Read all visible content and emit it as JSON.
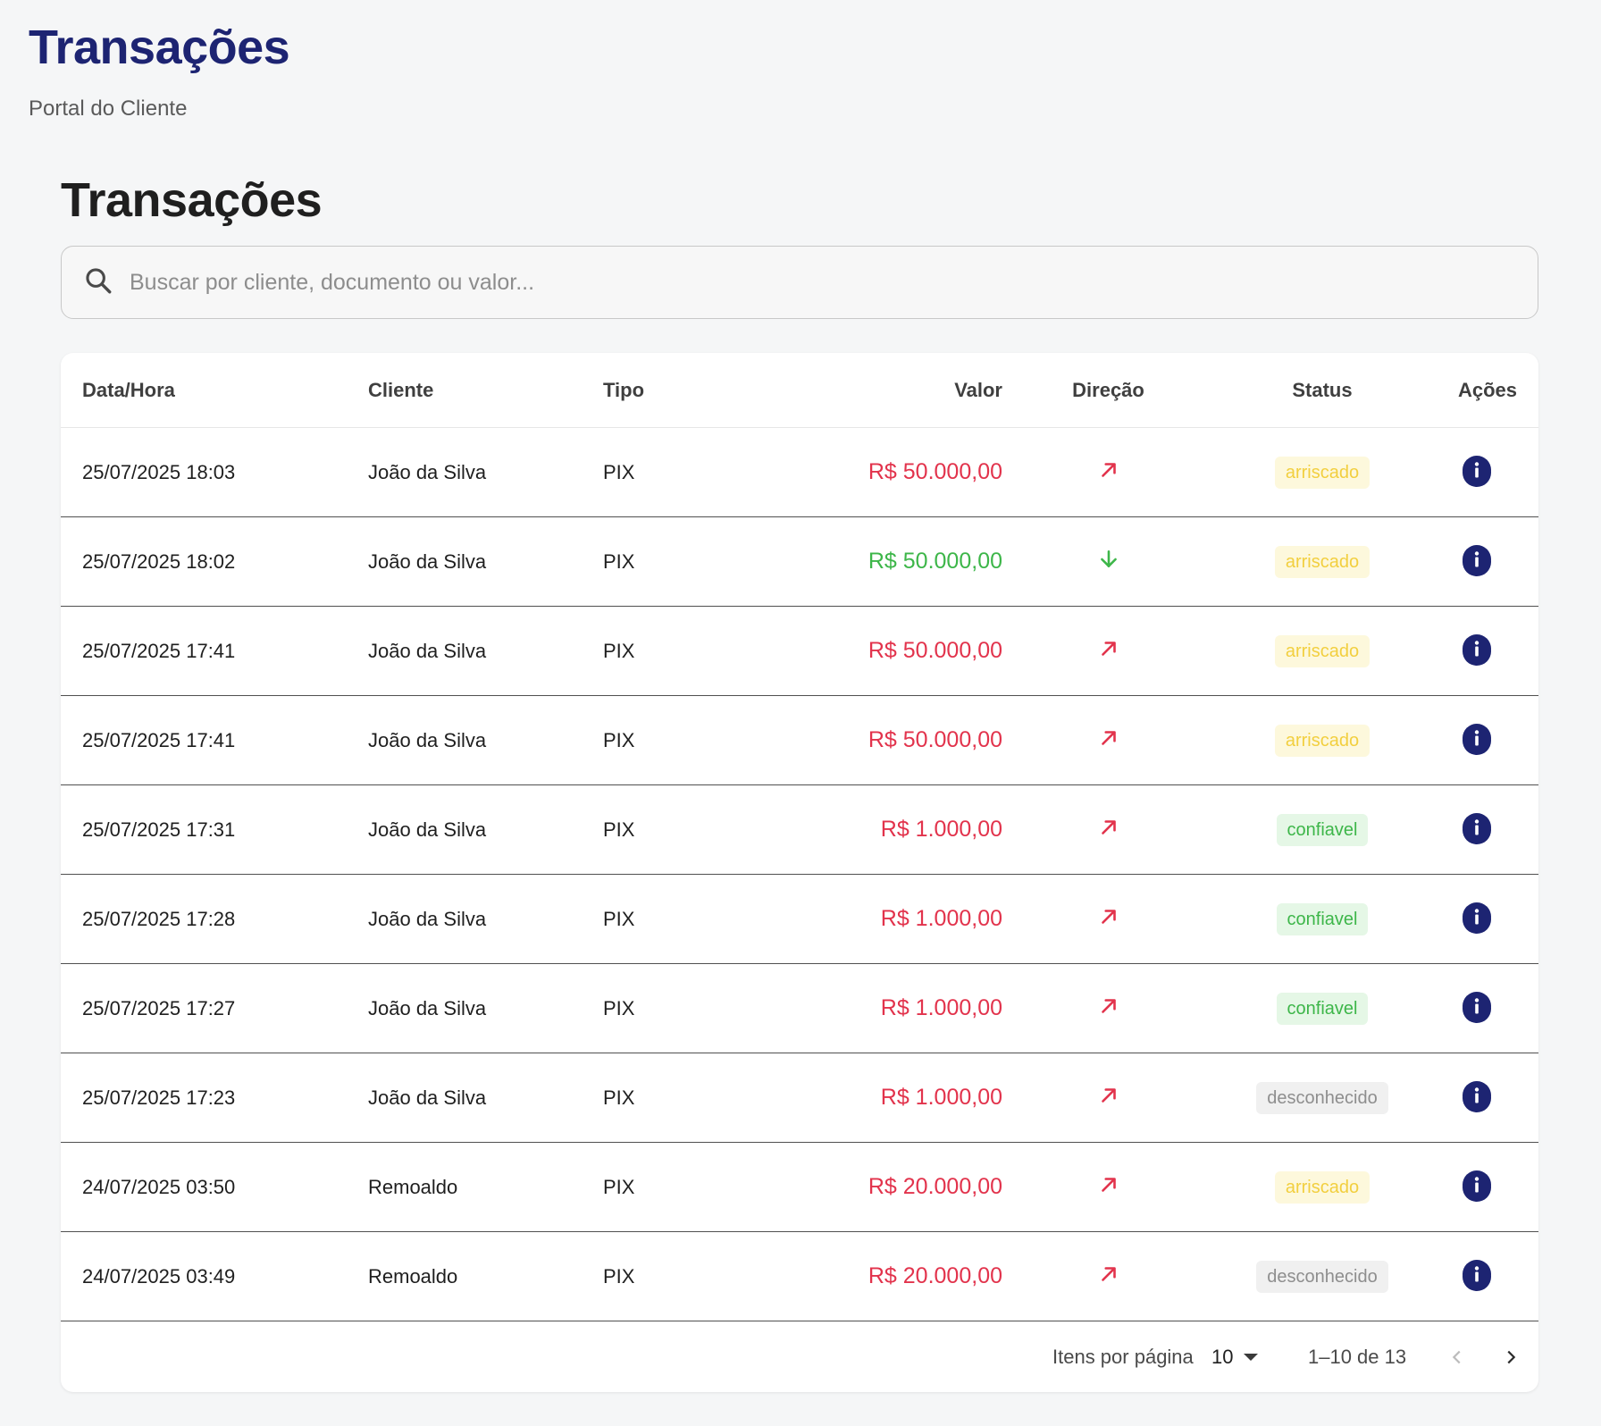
{
  "header": {
    "app_title": "Transações",
    "app_subtitle": "Portal do Cliente"
  },
  "main": {
    "title": "Transações",
    "search": {
      "placeholder": "Buscar por cliente, documento ou valor...",
      "value": ""
    },
    "table": {
      "columns": {
        "date": "Data/Hora",
        "client": "Cliente",
        "type": "Tipo",
        "value": "Valor",
        "direction": "Direção",
        "status": "Status",
        "actions": "Ações"
      },
      "rows": [
        {
          "date": "25/07/2025 18:03",
          "client": "João da Silva",
          "type": "PIX",
          "value": "R$ 50.000,00",
          "direction": "out",
          "direction_icon": "arrow-up-right-icon",
          "status": "arriscado"
        },
        {
          "date": "25/07/2025 18:02",
          "client": "João da Silva",
          "type": "PIX",
          "value": "R$ 50.000,00",
          "direction": "in",
          "direction_icon": "arrow-down-icon",
          "status": "arriscado"
        },
        {
          "date": "25/07/2025 17:41",
          "client": "João da Silva",
          "type": "PIX",
          "value": "R$ 50.000,00",
          "direction": "out",
          "direction_icon": "arrow-up-right-icon",
          "status": "arriscado"
        },
        {
          "date": "25/07/2025 17:41",
          "client": "João da Silva",
          "type": "PIX",
          "value": "R$ 50.000,00",
          "direction": "out",
          "direction_icon": "arrow-up-right-icon",
          "status": "arriscado"
        },
        {
          "date": "25/07/2025 17:31",
          "client": "João da Silva",
          "type": "PIX",
          "value": "R$ 1.000,00",
          "direction": "out",
          "direction_icon": "arrow-up-right-icon",
          "status": "confiavel"
        },
        {
          "date": "25/07/2025 17:28",
          "client": "João da Silva",
          "type": "PIX",
          "value": "R$ 1.000,00",
          "direction": "out",
          "direction_icon": "arrow-up-right-icon",
          "status": "confiavel"
        },
        {
          "date": "25/07/2025 17:27",
          "client": "João da Silva",
          "type": "PIX",
          "value": "R$ 1.000,00",
          "direction": "out",
          "direction_icon": "arrow-up-right-icon",
          "status": "confiavel"
        },
        {
          "date": "25/07/2025 17:23",
          "client": "João da Silva",
          "type": "PIX",
          "value": "R$ 1.000,00",
          "direction": "out",
          "direction_icon": "arrow-up-right-icon",
          "status": "desconhecido"
        },
        {
          "date": "24/07/2025 03:50",
          "client": "Remoaldo",
          "type": "PIX",
          "value": "R$ 20.000,00",
          "direction": "out",
          "direction_icon": "arrow-up-right-icon",
          "status": "arriscado"
        },
        {
          "date": "24/07/2025 03:49",
          "client": "Remoaldo",
          "type": "PIX",
          "value": "R$ 20.000,00",
          "direction": "out",
          "direction_icon": "arrow-up-right-icon",
          "status": "desconhecido"
        }
      ]
    },
    "pagination": {
      "per_page_label": "Itens por página",
      "per_page_value": "10",
      "range_label": "1–10 de 13",
      "prev_icon": "chevron-left-icon",
      "next_icon": "chevron-right-icon"
    }
  },
  "colors": {
    "brand": "#1d2472",
    "amount_out": "#e2334c",
    "amount_in": "#3db649",
    "status_arriscado": "#f2cf3f",
    "status_confiavel": "#3db649",
    "status_desconhecido": "#8e8e8e"
  }
}
